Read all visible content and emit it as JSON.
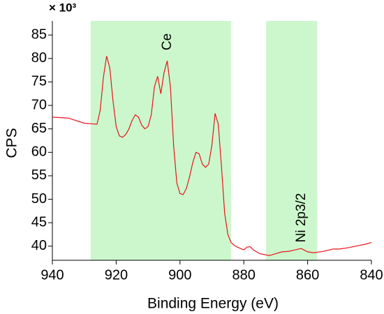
{
  "chart_data": {
    "type": "line",
    "xlabel": "Binding Energy (eV)",
    "ylabel": "CPS",
    "y_multiplier": "× 10³",
    "xlim": [
      940,
      840
    ],
    "ylim": [
      37,
      88
    ],
    "xticks": [
      940,
      920,
      900,
      880,
      860,
      840
    ],
    "yticks": [
      40,
      45,
      50,
      55,
      60,
      65,
      70,
      75,
      80,
      85
    ],
    "grid": false,
    "regions": [
      {
        "label": "Ce",
        "xlim": [
          928,
          884
        ],
        "color": "#ccf7cc"
      },
      {
        "label": "Ni 2p3/2",
        "xlim": [
          873,
          857
        ],
        "color": "#ccf7cc"
      }
    ],
    "series": [
      {
        "name": "CPS",
        "color": "#e8141c",
        "x": [
          940,
          935,
          930,
          926,
          925,
          924,
          923,
          922,
          921,
          920,
          919,
          918,
          917,
          916,
          915,
          914,
          913,
          912,
          911,
          910,
          909,
          908,
          907,
          906,
          905,
          904,
          903,
          902,
          901,
          900,
          899,
          898,
          897,
          896,
          895,
          894,
          893,
          892,
          891,
          890,
          889,
          888,
          887,
          886,
          885,
          884,
          883,
          882,
          880,
          879,
          878,
          877,
          875,
          872,
          870,
          868,
          866,
          864,
          862,
          860,
          858,
          855,
          852,
          850,
          847,
          845,
          842,
          840
        ],
        "values": [
          67.5,
          67.3,
          66.2,
          66,
          69,
          76,
          80.5,
          78,
          71,
          65.5,
          63.5,
          63.2,
          63.8,
          65,
          66.8,
          68,
          67.5,
          65.8,
          65,
          65.5,
          68,
          74,
          76.2,
          72.5,
          77,
          79.5,
          74,
          61.5,
          53.5,
          51.2,
          51,
          52.3,
          54.8,
          57.8,
          60,
          59.7,
          57.5,
          56.8,
          57.5,
          61.5,
          68.3,
          66,
          57,
          47,
          42.5,
          40.8,
          40.2,
          39.8,
          39.2,
          39.8,
          39.9,
          39.2,
          38.4,
          38,
          38.4,
          38.8,
          38.9,
          39.2,
          39.5,
          38.8,
          38.6,
          38.9,
          39.4,
          39.4,
          39.7,
          40,
          40.4,
          40.8
        ]
      }
    ]
  }
}
